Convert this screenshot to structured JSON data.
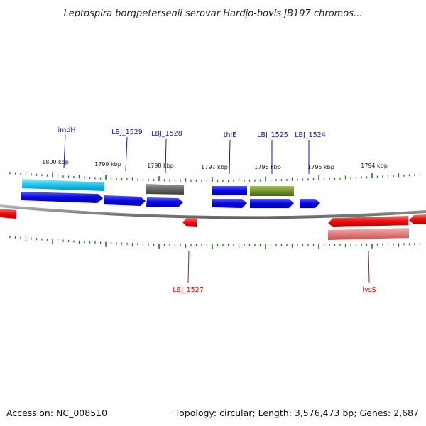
{
  "title": "Leptospira borgpetersenii serovar Hardjo-bovis JB197 chromos...",
  "footer": {
    "accession": "Accession: NC_008510",
    "summary": "Topology: circular; Length: 3,576,473 bp; Genes: 2,687"
  },
  "scale_labels": [
    "1800 kbp",
    "1799 kbp",
    "1798 kbp",
    "1797 kbp",
    "1796 kbp",
    "1795 kbp",
    "1794 kbp"
  ],
  "gene_labels_forward": [
    "imdH",
    "LBJ_1529",
    "LBJ_1528",
    "thiE",
    "LBJ_1525",
    "LBJ_1524"
  ],
  "gene_labels_reverse": [
    "LBJ_1527",
    "lysS"
  ],
  "colors": {
    "forward_label": "#1a1aa0",
    "reverse_label": "#cc1111",
    "cds_forward": "#0a0ae6",
    "cds_reverse": "#ee1111",
    "tick": "#1e7a1e",
    "backbone": "#8c8c8c"
  }
}
